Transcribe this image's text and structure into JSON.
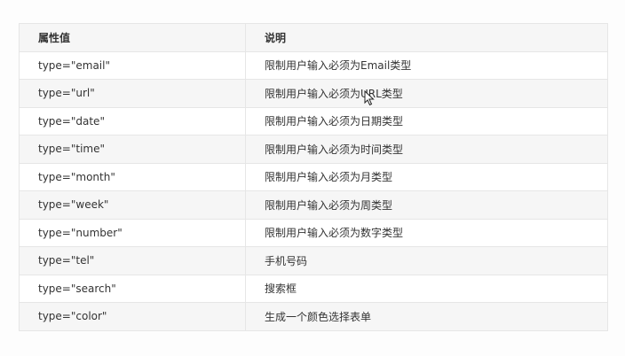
{
  "table": {
    "headers": [
      "属性值",
      "说明"
    ],
    "rows": [
      [
        "type=\"email\"",
        "限制用户输入必须为Email类型"
      ],
      [
        "type=\"url\"",
        "限制用户输入必须为URL类型"
      ],
      [
        "type=\"date\"",
        "限制用户输入必须为日期类型"
      ],
      [
        "type=\"time\"",
        "限制用户输入必须为时间类型"
      ],
      [
        "type=\"month\"",
        "限制用户输入必须为月类型"
      ],
      [
        "type=\"week\"",
        "限制用户输入必须为周类型"
      ],
      [
        "type=\"number\"",
        "限制用户输入必须为数字类型"
      ],
      [
        "type=\"tel\"",
        "手机号码"
      ],
      [
        "type=\"search\"",
        "搜索框"
      ],
      [
        "type=\"color\"",
        "生成一个颜色选择表单"
      ]
    ]
  },
  "icons": {
    "cursor": "mouse-pointer-icon"
  }
}
